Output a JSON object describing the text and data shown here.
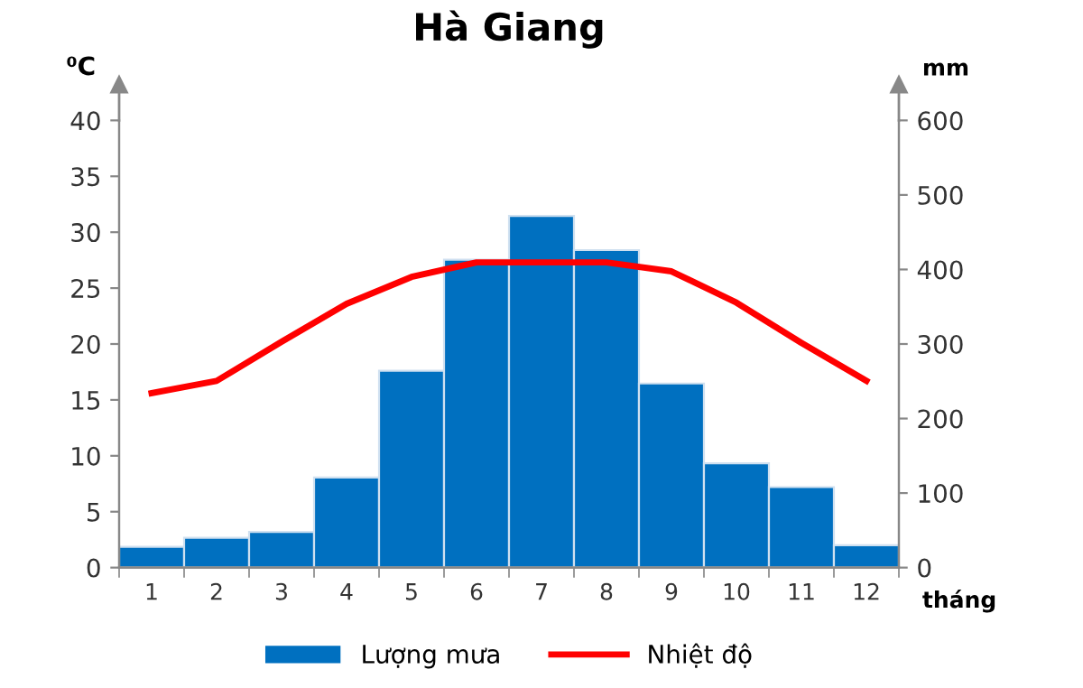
{
  "chart_data": {
    "type": "bar",
    "title": "Hà Giang",
    "ylabel": "⁰C",
    "y2label": "mm",
    "xlabel": "tháng",
    "categories": [
      "1",
      "2",
      "3",
      "4",
      "5",
      "6",
      "7",
      "8",
      "9",
      "10",
      "11",
      "12"
    ],
    "series": [
      {
        "name": "Lượng mưa",
        "axis": "y2",
        "color": "#0070c0",
        "values": [
          28,
          40,
          48,
          121,
          264,
          413,
          472,
          426,
          247,
          140,
          108,
          30
        ]
      },
      {
        "name": "Nhiệt độ",
        "type": "line",
        "axis": "y",
        "color": "#ff0000",
        "values": [
          15.6,
          16.7,
          20.2,
          23.6,
          26.0,
          27.3,
          27.3,
          27.3,
          26.5,
          23.7,
          20.1,
          16.7
        ]
      }
    ],
    "ylim": [
      0,
      40
    ],
    "yticks": [
      0,
      5,
      10,
      15,
      20,
      25,
      30,
      35,
      40
    ],
    "y2lim": [
      0,
      600
    ],
    "y2ticks": [
      0,
      100,
      200,
      300,
      400,
      500,
      600
    ],
    "grid": false,
    "legend": "bottom",
    "marker": "none",
    "line_style": "solid"
  }
}
